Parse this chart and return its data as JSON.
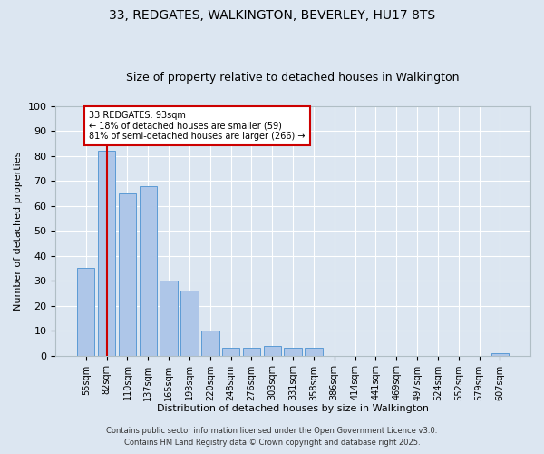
{
  "title1": "33, REDGATES, WALKINGTON, BEVERLEY, HU17 8TS",
  "title2": "Size of property relative to detached houses in Walkington",
  "xlabel": "Distribution of detached houses by size in Walkington",
  "ylabel": "Number of detached properties",
  "bar_labels": [
    "55sqm",
    "82sqm",
    "110sqm",
    "137sqm",
    "165sqm",
    "193sqm",
    "220sqm",
    "248sqm",
    "276sqm",
    "303sqm",
    "331sqm",
    "358sqm",
    "386sqm",
    "414sqm",
    "441sqm",
    "469sqm",
    "497sqm",
    "524sqm",
    "552sqm",
    "579sqm",
    "607sqm"
  ],
  "bar_values": [
    35,
    82,
    65,
    68,
    30,
    26,
    10,
    3,
    3,
    4,
    3,
    3,
    0,
    0,
    0,
    0,
    0,
    0,
    0,
    0,
    1
  ],
  "bar_color": "#aec6e8",
  "bar_edgecolor": "#5b9bd5",
  "bg_color": "#dce6f1",
  "grid_color": "#ffffff",
  "red_line_x": 1,
  "annotation_text": "33 REDGATES: 93sqm\n← 18% of detached houses are smaller (59)\n81% of semi-detached houses are larger (266) →",
  "annotation_box_color": "#ffffff",
  "annotation_box_edgecolor": "#cc0000",
  "ylim": [
    0,
    100
  ],
  "yticks": [
    0,
    10,
    20,
    30,
    40,
    50,
    60,
    70,
    80,
    90,
    100
  ],
  "footer1": "Contains HM Land Registry data © Crown copyright and database right 2025.",
  "footer2": "Contains public sector information licensed under the Open Government Licence v3.0."
}
